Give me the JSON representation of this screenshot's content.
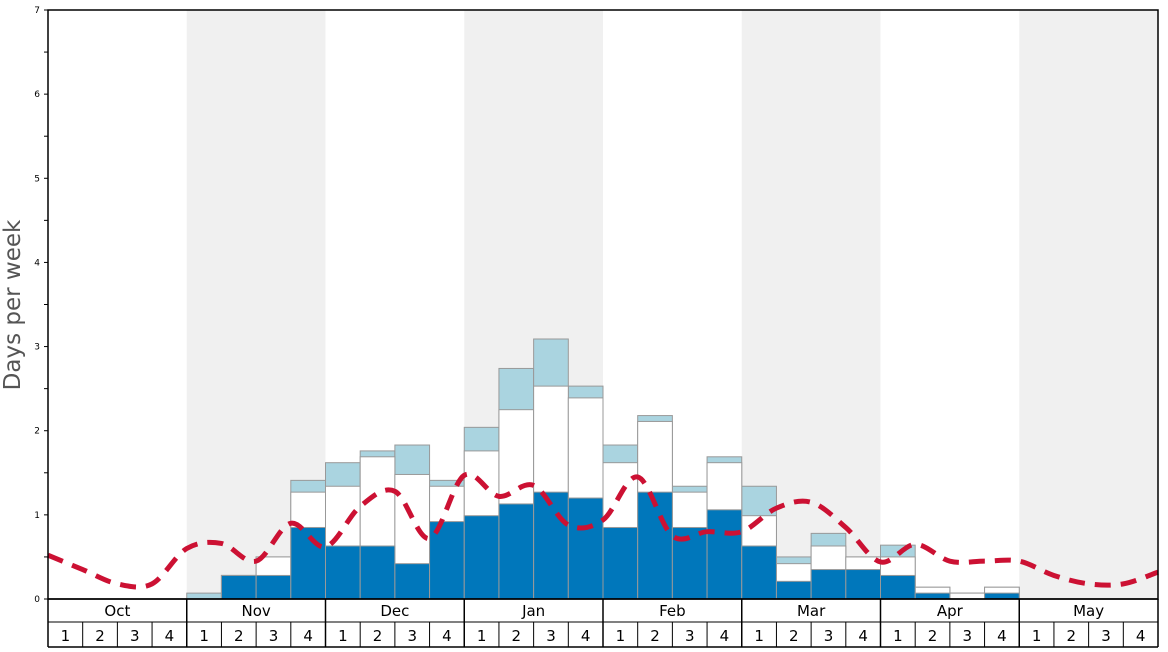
{
  "chart_data": {
    "type": "bar",
    "ylabel": "Days per week",
    "ylim": [
      0,
      7
    ],
    "yticks": [
      0,
      1,
      2,
      3,
      4,
      5,
      6,
      7
    ],
    "months": [
      "Oct",
      "Nov",
      "Dec",
      "Jan",
      "Feb",
      "Mar",
      "Apr",
      "May"
    ],
    "weeks": [
      "1",
      "2",
      "3",
      "4"
    ],
    "shaded_months": [
      "Nov",
      "Jan",
      "Mar",
      "May"
    ],
    "colors": {
      "dark": "#0077bb",
      "mid": "#ffffff",
      "light": "#aad4e0",
      "line": "#cc1133",
      "shade": "#f0f0f0"
    },
    "series": [
      {
        "layer": "dark",
        "values": [
          0,
          0,
          0,
          0,
          0,
          0.28,
          0.28,
          0.85,
          0.63,
          0.63,
          0.42,
          0.92,
          0.99,
          1.13,
          1.27,
          1.2,
          0.85,
          1.27,
          0.85,
          1.06,
          0.63,
          0.21,
          0.35,
          0.35,
          0.28,
          0.07,
          0,
          0.07,
          0,
          0,
          0,
          0
        ]
      },
      {
        "layer": "mid",
        "values": [
          0,
          0,
          0,
          0,
          0,
          0.28,
          0.5,
          1.27,
          1.34,
          1.69,
          1.48,
          1.34,
          1.76,
          2.25,
          2.53,
          2.39,
          1.62,
          2.11,
          1.27,
          1.62,
          0.99,
          0.42,
          0.63,
          0.5,
          0.5,
          0.14,
          0.07,
          0.14,
          0,
          0,
          0,
          0
        ]
      },
      {
        "layer": "light",
        "values": [
          0,
          0,
          0,
          0,
          0.07,
          0.28,
          0.5,
          1.41,
          1.62,
          1.76,
          1.83,
          1.41,
          2.04,
          2.74,
          3.09,
          2.53,
          1.83,
          2.18,
          1.34,
          1.69,
          1.34,
          0.5,
          0.78,
          0.5,
          0.64,
          0.14,
          0.07,
          0.14,
          0,
          0,
          0,
          0
        ]
      },
      {
        "layer": "line",
        "values": [
          0.52,
          0.35,
          0.18,
          0.18,
          0.6,
          0.66,
          0.45,
          0.9,
          0.62,
          1.1,
          1.28,
          0.72,
          1.47,
          1.22,
          1.35,
          0.88,
          0.94,
          1.45,
          0.75,
          0.8,
          0.8,
          1.08,
          1.15,
          0.85,
          0.44,
          0.65,
          0.45,
          0.45,
          0.45,
          0.28,
          0.18,
          0.18,
          0.32
        ]
      }
    ]
  }
}
